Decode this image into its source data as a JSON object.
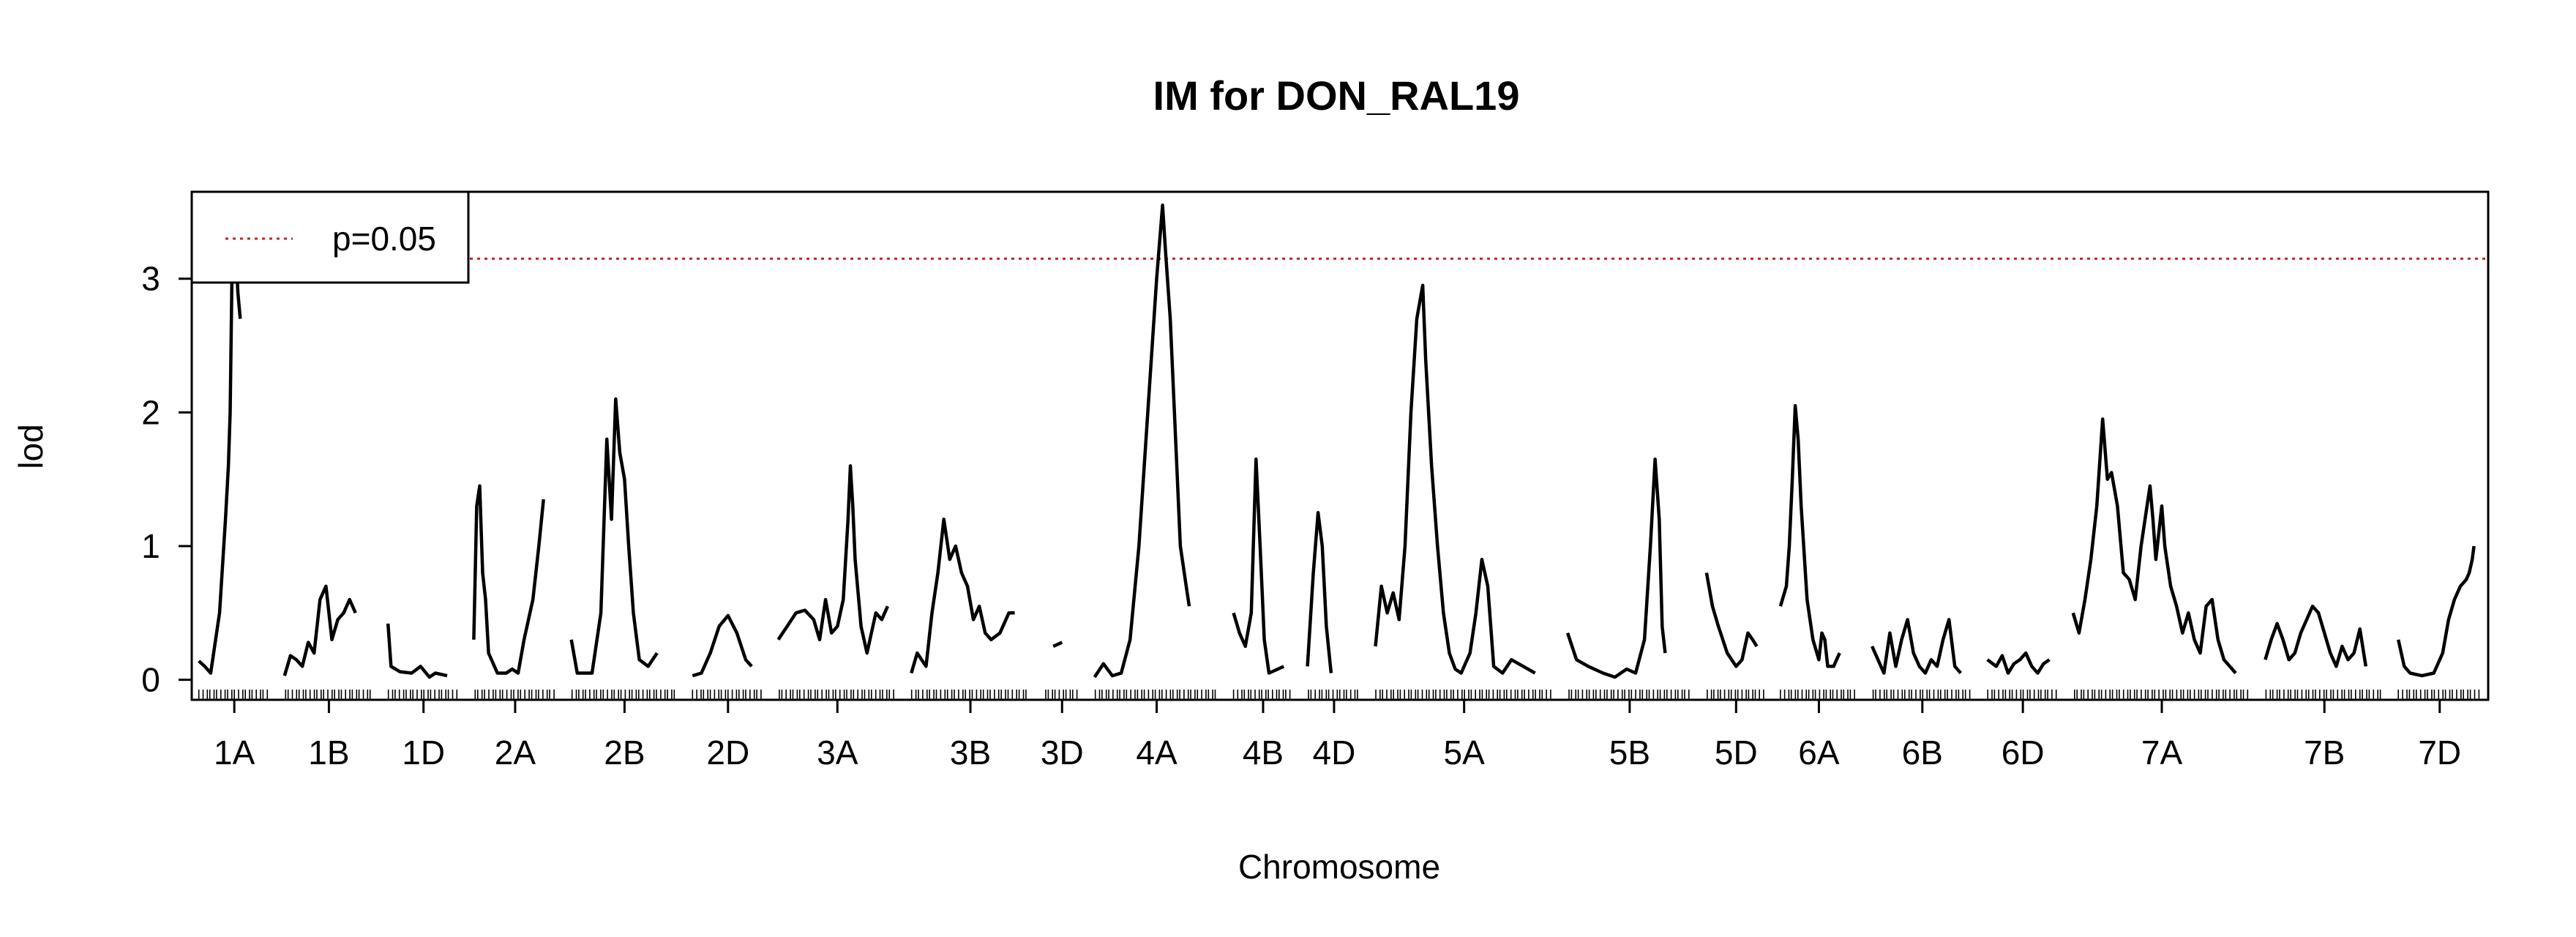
{
  "chart_data": {
    "type": "line",
    "title": "IM for DON_RAL19",
    "xlabel": "Chromosome",
    "ylabel": "lod",
    "ylim": [
      -0.15,
      3.65
    ],
    "y_ticks": [
      0,
      1,
      2,
      3
    ],
    "threshold": {
      "label": "p=0.05",
      "value": 3.15,
      "color": "#cc2222"
    },
    "legend": {
      "position": "top-left",
      "entries": [
        "p=0.05"
      ]
    },
    "x_unit": "cM",
    "chromosomes": [
      {
        "name": "1A",
        "length": 120,
        "pts": [
          [
            0,
            0.14
          ],
          [
            10,
            0.1
          ],
          [
            20,
            0.05
          ],
          [
            35,
            0.5
          ],
          [
            45,
            1.2
          ],
          [
            50,
            1.6
          ],
          [
            53,
            2.0
          ],
          [
            56,
            3.0
          ],
          [
            60,
            3.3
          ],
          [
            63,
            3.2
          ],
          [
            66,
            2.9
          ],
          [
            70,
            2.7
          ]
        ]
      },
      {
        "name": "1B",
        "length": 150,
        "pts": [
          [
            0,
            0.03
          ],
          [
            10,
            0.18
          ],
          [
            20,
            0.15
          ],
          [
            30,
            0.1
          ],
          [
            40,
            0.28
          ],
          [
            50,
            0.2
          ],
          [
            60,
            0.6
          ],
          [
            70,
            0.7
          ],
          [
            80,
            0.3
          ],
          [
            90,
            0.45
          ],
          [
            100,
            0.5
          ],
          [
            110,
            0.6
          ],
          [
            120,
            0.5
          ]
        ]
      },
      {
        "name": "1D",
        "length": 120,
        "pts": [
          [
            0,
            0.42
          ],
          [
            5,
            0.1
          ],
          [
            20,
            0.06
          ],
          [
            40,
            0.05
          ],
          [
            55,
            0.1
          ],
          [
            70,
            0.02
          ],
          [
            80,
            0.05
          ],
          [
            100,
            0.03
          ]
        ]
      },
      {
        "name": "2A",
        "length": 140,
        "pts": [
          [
            0,
            0.3
          ],
          [
            5,
            1.3
          ],
          [
            10,
            1.45
          ],
          [
            15,
            0.8
          ],
          [
            20,
            0.6
          ],
          [
            25,
            0.2
          ],
          [
            40,
            0.05
          ],
          [
            55,
            0.05
          ],
          [
            65,
            0.08
          ],
          [
            75,
            0.05
          ],
          [
            85,
            0.3
          ],
          [
            100,
            0.6
          ],
          [
            110,
            1.0
          ],
          [
            118,
            1.35
          ]
        ]
      },
      {
        "name": "2B",
        "length": 180,
        "pts": [
          [
            0,
            0.3
          ],
          [
            10,
            0.05
          ],
          [
            35,
            0.05
          ],
          [
            50,
            0.5
          ],
          [
            60,
            1.8
          ],
          [
            68,
            1.2
          ],
          [
            75,
            2.1
          ],
          [
            82,
            1.7
          ],
          [
            90,
            1.5
          ],
          [
            97,
            1.0
          ],
          [
            105,
            0.5
          ],
          [
            115,
            0.15
          ],
          [
            130,
            0.1
          ],
          [
            145,
            0.2
          ]
        ]
      },
      {
        "name": "2D",
        "length": 120,
        "pts": [
          [
            0,
            0.03
          ],
          [
            15,
            0.05
          ],
          [
            30,
            0.2
          ],
          [
            45,
            0.4
          ],
          [
            60,
            0.48
          ],
          [
            75,
            0.35
          ],
          [
            90,
            0.15
          ],
          [
            100,
            0.1
          ]
        ]
      },
      {
        "name": "3A",
        "length": 200,
        "pts": [
          [
            0,
            0.3
          ],
          [
            15,
            0.4
          ],
          [
            30,
            0.5
          ],
          [
            45,
            0.52
          ],
          [
            60,
            0.45
          ],
          [
            70,
            0.3
          ],
          [
            80,
            0.6
          ],
          [
            90,
            0.35
          ],
          [
            100,
            0.4
          ],
          [
            110,
            0.6
          ],
          [
            118,
            1.2
          ],
          [
            122,
            1.6
          ],
          [
            126,
            1.3
          ],
          [
            130,
            0.9
          ],
          [
            140,
            0.4
          ],
          [
            150,
            0.2
          ],
          [
            165,
            0.5
          ],
          [
            175,
            0.45
          ],
          [
            185,
            0.55
          ]
        ]
      },
      {
        "name": "3B",
        "length": 200,
        "pts": [
          [
            0,
            0.05
          ],
          [
            10,
            0.2
          ],
          [
            25,
            0.1
          ],
          [
            35,
            0.5
          ],
          [
            45,
            0.8
          ],
          [
            55,
            1.2
          ],
          [
            65,
            0.9
          ],
          [
            75,
            1.0
          ],
          [
            85,
            0.8
          ],
          [
            95,
            0.7
          ],
          [
            105,
            0.45
          ],
          [
            115,
            0.55
          ],
          [
            125,
            0.35
          ],
          [
            135,
            0.3
          ],
          [
            150,
            0.35
          ],
          [
            165,
            0.5
          ],
          [
            175,
            0.5
          ]
        ]
      },
      {
        "name": "3D",
        "length": 60,
        "pts": [
          [
            15,
            0.25
          ],
          [
            30,
            0.28
          ]
        ]
      },
      {
        "name": "4A",
        "length": 210,
        "pts": [
          [
            0,
            0.02
          ],
          [
            15,
            0.12
          ],
          [
            30,
            0.03
          ],
          [
            45,
            0.05
          ],
          [
            60,
            0.3
          ],
          [
            75,
            1.0
          ],
          [
            90,
            2.0
          ],
          [
            105,
            3.0
          ],
          [
            115,
            3.55
          ],
          [
            120,
            3.2
          ],
          [
            128,
            2.7
          ],
          [
            135,
            2.0
          ],
          [
            145,
            1.0
          ],
          [
            155,
            0.7
          ],
          [
            160,
            0.55
          ]
        ]
      },
      {
        "name": "4B",
        "length": 100,
        "pts": [
          [
            0,
            0.5
          ],
          [
            10,
            0.35
          ],
          [
            20,
            0.25
          ],
          [
            30,
            0.5
          ],
          [
            38,
            1.65
          ],
          [
            45,
            1.0
          ],
          [
            52,
            0.3
          ],
          [
            60,
            0.05
          ],
          [
            75,
            0.08
          ],
          [
            85,
            0.1
          ]
        ]
      },
      {
        "name": "4D",
        "length": 90,
        "pts": [
          [
            0,
            0.1
          ],
          [
            10,
            0.8
          ],
          [
            18,
            1.25
          ],
          [
            25,
            1.0
          ],
          [
            32,
            0.4
          ],
          [
            40,
            0.05
          ]
        ]
      },
      {
        "name": "5A",
        "length": 300,
        "pts": [
          [
            0,
            0.25
          ],
          [
            10,
            0.7
          ],
          [
            20,
            0.5
          ],
          [
            30,
            0.65
          ],
          [
            40,
            0.45
          ],
          [
            50,
            1.0
          ],
          [
            60,
            2.0
          ],
          [
            70,
            2.7
          ],
          [
            80,
            2.95
          ],
          [
            85,
            2.4
          ],
          [
            95,
            1.6
          ],
          [
            105,
            1.0
          ],
          [
            115,
            0.5
          ],
          [
            125,
            0.2
          ],
          [
            135,
            0.08
          ],
          [
            145,
            0.05
          ],
          [
            160,
            0.2
          ],
          [
            170,
            0.5
          ],
          [
            180,
            0.9
          ],
          [
            190,
            0.7
          ],
          [
            200,
            0.1
          ],
          [
            215,
            0.05
          ],
          [
            230,
            0.15
          ],
          [
            250,
            0.1
          ],
          [
            270,
            0.05
          ]
        ]
      },
      {
        "name": "5B",
        "length": 210,
        "pts": [
          [
            0,
            0.35
          ],
          [
            15,
            0.15
          ],
          [
            35,
            0.1
          ],
          [
            60,
            0.05
          ],
          [
            80,
            0.02
          ],
          [
            100,
            0.08
          ],
          [
            115,
            0.05
          ],
          [
            130,
            0.3
          ],
          [
            140,
            1.0
          ],
          [
            148,
            1.65
          ],
          [
            155,
            1.2
          ],
          [
            160,
            0.4
          ],
          [
            165,
            0.2
          ]
        ]
      },
      {
        "name": "5D",
        "length": 100,
        "pts": [
          [
            0,
            0.8
          ],
          [
            10,
            0.55
          ],
          [
            20,
            0.4
          ],
          [
            35,
            0.2
          ],
          [
            50,
            0.1
          ],
          [
            60,
            0.15
          ],
          [
            70,
            0.35
          ],
          [
            78,
            0.3
          ],
          [
            85,
            0.25
          ]
        ]
      },
      {
        "name": "6A",
        "length": 130,
        "pts": [
          [
            0,
            0.55
          ],
          [
            10,
            0.7
          ],
          [
            15,
            1.0
          ],
          [
            20,
            1.5
          ],
          [
            25,
            2.05
          ],
          [
            30,
            1.8
          ],
          [
            35,
            1.3
          ],
          [
            45,
            0.6
          ],
          [
            55,
            0.3
          ],
          [
            65,
            0.15
          ],
          [
            70,
            0.35
          ],
          [
            75,
            0.3
          ],
          [
            80,
            0.1
          ],
          [
            90,
            0.1
          ],
          [
            100,
            0.2
          ]
        ]
      },
      {
        "name": "6B",
        "length": 170,
        "pts": [
          [
            0,
            0.25
          ],
          [
            10,
            0.15
          ],
          [
            20,
            0.05
          ],
          [
            30,
            0.35
          ],
          [
            40,
            0.1
          ],
          [
            50,
            0.3
          ],
          [
            60,
            0.45
          ],
          [
            70,
            0.2
          ],
          [
            80,
            0.1
          ],
          [
            90,
            0.05
          ],
          [
            100,
            0.15
          ],
          [
            110,
            0.1
          ],
          [
            120,
            0.3
          ],
          [
            130,
            0.45
          ],
          [
            140,
            0.1
          ],
          [
            150,
            0.05
          ]
        ]
      },
      {
        "name": "6D",
        "length": 120,
        "pts": [
          [
            0,
            0.15
          ],
          [
            15,
            0.1
          ],
          [
            25,
            0.18
          ],
          [
            35,
            0.05
          ],
          [
            45,
            0.12
          ],
          [
            55,
            0.15
          ],
          [
            65,
            0.2
          ],
          [
            75,
            0.1
          ],
          [
            85,
            0.05
          ],
          [
            95,
            0.12
          ],
          [
            105,
            0.15
          ]
        ]
      },
      {
        "name": "7A",
        "length": 300,
        "pts": [
          [
            0,
            0.5
          ],
          [
            10,
            0.35
          ],
          [
            20,
            0.6
          ],
          [
            30,
            0.9
          ],
          [
            40,
            1.3
          ],
          [
            50,
            1.95
          ],
          [
            58,
            1.5
          ],
          [
            65,
            1.55
          ],
          [
            75,
            1.3
          ],
          [
            85,
            0.8
          ],
          [
            95,
            0.75
          ],
          [
            105,
            0.6
          ],
          [
            115,
            1.0
          ],
          [
            125,
            1.3
          ],
          [
            130,
            1.45
          ],
          [
            135,
            1.2
          ],
          [
            140,
            0.9
          ],
          [
            150,
            1.3
          ],
          [
            155,
            1.0
          ],
          [
            165,
            0.7
          ],
          [
            175,
            0.55
          ],
          [
            185,
            0.35
          ],
          [
            195,
            0.5
          ],
          [
            205,
            0.3
          ],
          [
            215,
            0.2
          ],
          [
            225,
            0.55
          ],
          [
            235,
            0.6
          ],
          [
            245,
            0.3
          ],
          [
            255,
            0.15
          ],
          [
            265,
            0.1
          ],
          [
            275,
            0.05
          ]
        ]
      },
      {
        "name": "7B",
        "length": 200,
        "pts": [
          [
            0,
            0.15
          ],
          [
            10,
            0.3
          ],
          [
            20,
            0.42
          ],
          [
            30,
            0.3
          ],
          [
            40,
            0.15
          ],
          [
            50,
            0.2
          ],
          [
            60,
            0.35
          ],
          [
            70,
            0.45
          ],
          [
            80,
            0.55
          ],
          [
            90,
            0.5
          ],
          [
            100,
            0.35
          ],
          [
            110,
            0.2
          ],
          [
            120,
            0.1
          ],
          [
            130,
            0.25
          ],
          [
            140,
            0.15
          ],
          [
            150,
            0.2
          ],
          [
            160,
            0.38
          ],
          [
            170,
            0.1
          ]
        ]
      },
      {
        "name": "7D",
        "length": 140,
        "pts": [
          [
            0,
            0.3
          ],
          [
            10,
            0.1
          ],
          [
            20,
            0.05
          ],
          [
            40,
            0.03
          ],
          [
            60,
            0.05
          ],
          [
            75,
            0.2
          ],
          [
            85,
            0.45
          ],
          [
            95,
            0.6
          ],
          [
            105,
            0.7
          ],
          [
            115,
            0.75
          ],
          [
            120,
            0.8
          ],
          [
            125,
            0.9
          ],
          [
            128,
            1.0
          ]
        ]
      }
    ]
  }
}
